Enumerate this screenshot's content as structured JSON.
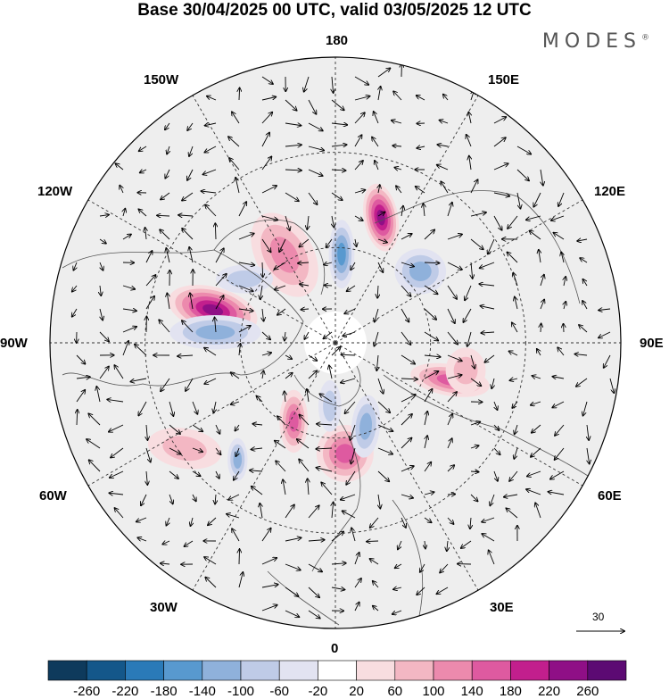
{
  "title": "Base 30/04/2025 00 UTC, valid 03/05/2025 12 UTC",
  "brand": "MODES",
  "brand_mark": "®",
  "longitude_labels": {
    "top": "180",
    "bottom": "0",
    "left": "90W",
    "right": "90E",
    "nw_upper": "150W",
    "nw_lower": "120W",
    "ne_upper": "150E",
    "ne_lower": "120E",
    "sw_upper": "60W",
    "sw_lower": "30W",
    "se_upper": "60E",
    "se_lower": "30E"
  },
  "reference_vector": {
    "value": "30"
  },
  "colorbar": {
    "labels": [
      "-260",
      "-220",
      "-180",
      "-140",
      "-100",
      "-60",
      "-20",
      "20",
      "60",
      "100",
      "140",
      "180",
      "220",
      "260"
    ],
    "colors": [
      "#0e3a5c",
      "#14578a",
      "#2a7ab8",
      "#5899cf",
      "#8fb1db",
      "#bfcbe7",
      "#e2e3f1",
      "#ffffff",
      "#f8dde0",
      "#f3b7c3",
      "#ec8aad",
      "#de5aa0",
      "#c21f8d",
      "#8f0f86",
      "#5c0a73"
    ]
  },
  "map_fields": {
    "highs": [
      {
        "lat": 58,
        "lon": -150,
        "value": 120,
        "rx": 0.1,
        "ry": 0.16,
        "rot": -30
      },
      {
        "lat": 48,
        "lon": 160,
        "value": 250,
        "rx": 0.06,
        "ry": 0.12,
        "rot": -10
      },
      {
        "lat": 50,
        "lon": -105,
        "value": 240,
        "rx": 0.16,
        "ry": 0.08,
        "rot": 15
      },
      {
        "lat": 52,
        "lon": 72,
        "value": 160,
        "rx": 0.14,
        "ry": 0.055,
        "rot": 10
      },
      {
        "lat": 62,
        "lon": -28,
        "value": 150,
        "rx": 0.05,
        "ry": 0.11,
        "rot": 0
      },
      {
        "lat": 55,
        "lon": 5,
        "value": 140,
        "rx": 0.1,
        "ry": 0.1,
        "rot": 0
      },
      {
        "lat": 48,
        "lon": 78,
        "value": 90,
        "rx": 0.07,
        "ry": 0.08,
        "rot": 0
      },
      {
        "lat": 32,
        "lon": -55,
        "value": 80,
        "rx": 0.13,
        "ry": 0.07,
        "rot": 10
      }
    ],
    "lows": [
      {
        "lat": 62,
        "lon": 176,
        "value": -160,
        "rx": 0.045,
        "ry": 0.12,
        "rot": 0
      },
      {
        "lat": 55,
        "lon": 130,
        "value": -100,
        "rx": 0.09,
        "ry": 0.08,
        "rot": 0
      },
      {
        "lat": 52,
        "lon": -95,
        "value": -120,
        "rx": 0.16,
        "ry": 0.06,
        "rot": 0
      },
      {
        "lat": 42,
        "lon": -40,
        "value": -120,
        "rx": 0.035,
        "ry": 0.075,
        "rot": 0
      },
      {
        "lat": 62,
        "lon": 20,
        "value": -110,
        "rx": 0.05,
        "ry": 0.11,
        "rot": 5
      },
      {
        "lat": 55,
        "lon": -125,
        "value": -60,
        "rx": 0.1,
        "ry": 0.05,
        "rot": 0
      },
      {
        "lat": 70,
        "lon": -5,
        "value": -90,
        "rx": 0.04,
        "ry": 0.09,
        "rot": 0
      }
    ]
  }
}
